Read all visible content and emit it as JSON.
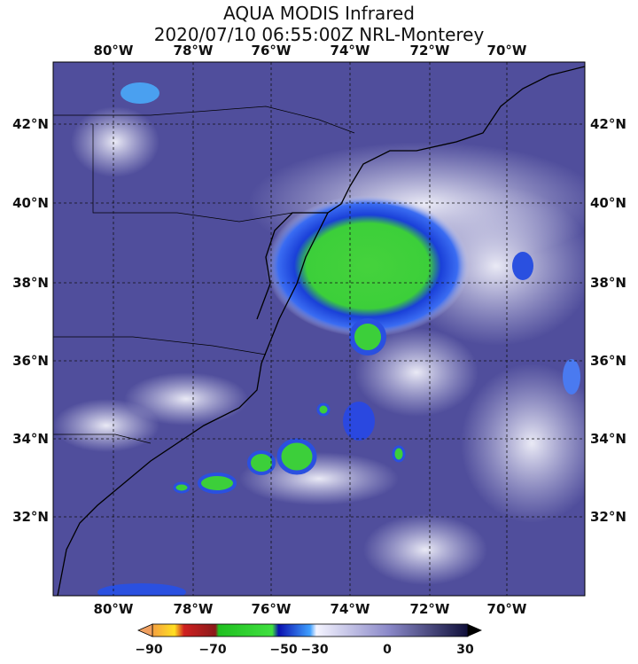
{
  "header": {
    "title": "AQUA MODIS Infrared",
    "subtitle": "2020/07/10 06:55:00Z NRL-Monterey"
  },
  "map": {
    "longitude_labels": [
      "80°W",
      "78°W",
      "76°W",
      "74°W",
      "72°W",
      "70°W"
    ],
    "latitude_labels": [
      "42°N",
      "40°N",
      "38°N",
      "36°N",
      "34°N",
      "32°N"
    ]
  },
  "colorbar": {
    "labels": [
      "−90",
      "−70",
      "−50",
      "−30",
      "0",
      "30"
    ]
  }
}
